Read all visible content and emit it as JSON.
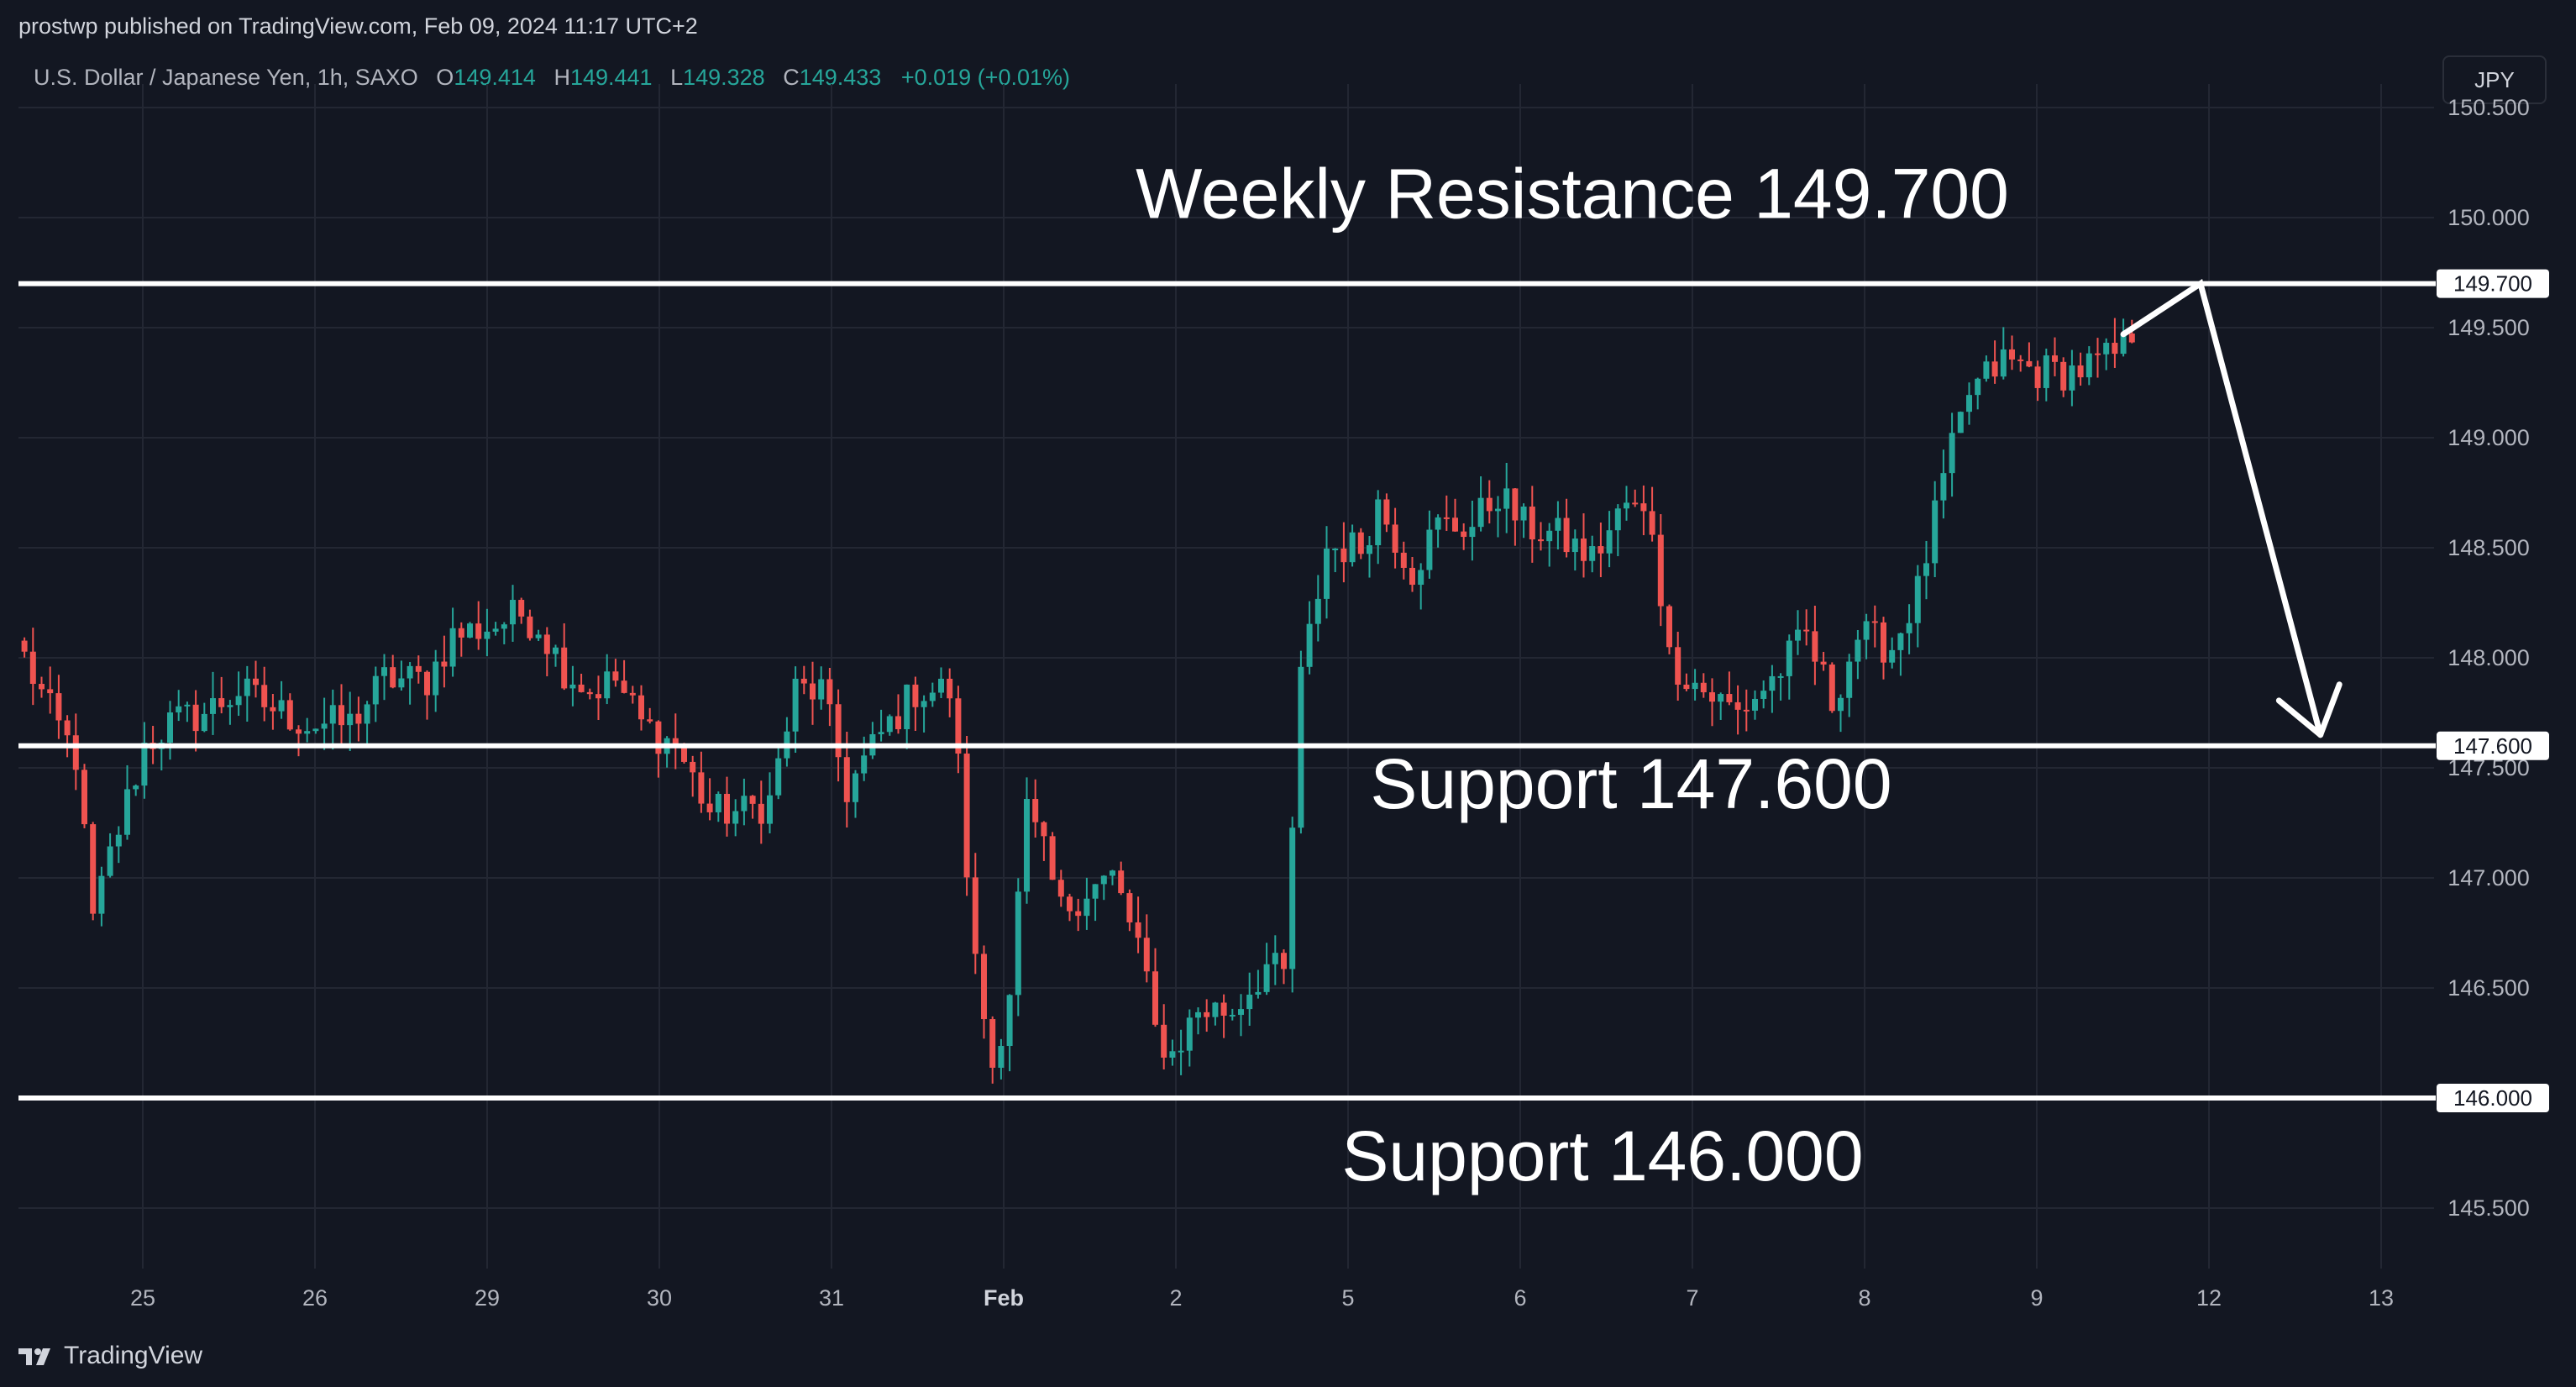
{
  "header": {
    "published": "prostwp published on TradingView.com, Feb 09, 2024 11:17 UTC+2",
    "symbol": "U.S. Dollar / Japanese Yen, 1h, SAXO",
    "open_label": "O",
    "open": "149.414",
    "high_label": "H",
    "high": "149.441",
    "low_label": "L",
    "low": "149.328",
    "close_label": "C",
    "close": "149.433",
    "change": "+0.019 (+0.01%)"
  },
  "currency_button": "JPY",
  "footer": {
    "brand": "TradingView"
  },
  "colors": {
    "background": "#131722",
    "up": "#26a69a",
    "down": "#ef5350",
    "grid": "#232733",
    "level_line": "#ffffff"
  },
  "chart_data": {
    "type": "candlestick",
    "title": "",
    "xlabel": "",
    "ylabel": "",
    "ylim": [
      145.2,
      150.6
    ],
    "grid": true,
    "y_ticks": [
      "150.500",
      "150.000",
      "149.500",
      "149.000",
      "148.500",
      "148.000",
      "147.500",
      "147.000",
      "146.500",
      "146.000",
      "145.500"
    ],
    "x_ticks": [
      "25",
      "26",
      "29",
      "30",
      "31",
      "Feb",
      "2",
      "5",
      "6",
      "7",
      "8",
      "9",
      "12",
      "13"
    ],
    "levels": [
      {
        "price": 149.7,
        "tag": "149.700",
        "annotation": "Weekly Resistance 149.700"
      },
      {
        "price": 147.6,
        "tag": "147.600",
        "annotation": "Support 147.600"
      },
      {
        "price": 146.0,
        "tag": "146.000",
        "annotation": "Support 146.000"
      }
    ],
    "projection_arrow": [
      {
        "bar": 245,
        "price": 149.47
      },
      {
        "bar": 254,
        "price": 149.7
      },
      {
        "bar": 268,
        "price": 147.65
      }
    ],
    "price_path": [
      [
        0,
        148.0
      ],
      [
        3,
        147.75
      ],
      [
        6,
        147.55
      ],
      [
        8,
        146.8
      ],
      [
        10,
        147.1
      ],
      [
        14,
        147.6
      ],
      [
        17,
        147.7
      ],
      [
        21,
        147.75
      ],
      [
        25,
        147.85
      ],
      [
        30,
        147.75
      ],
      [
        33,
        147.7
      ],
      [
        38,
        147.7
      ],
      [
        42,
        147.9
      ],
      [
        47,
        147.9
      ],
      [
        50,
        148.1
      ],
      [
        55,
        148.15
      ],
      [
        58,
        148.2
      ],
      [
        60,
        148.15
      ],
      [
        63,
        147.95
      ],
      [
        66,
        147.85
      ],
      [
        69,
        147.9
      ],
      [
        72,
        147.7
      ],
      [
        76,
        147.6
      ],
      [
        80,
        147.3
      ],
      [
        84,
        147.3
      ],
      [
        87,
        147.35
      ],
      [
        90,
        147.85
      ],
      [
        93,
        147.85
      ],
      [
        96,
        147.4
      ],
      [
        100,
        147.65
      ],
      [
        104,
        147.85
      ],
      [
        108,
        147.85
      ],
      [
        109,
        147.5
      ],
      [
        111,
        146.6
      ],
      [
        113,
        146.15
      ],
      [
        115,
        146.5
      ],
      [
        117,
        147.3
      ],
      [
        119,
        147.1
      ],
      [
        121,
        146.85
      ],
      [
        124,
        146.95
      ],
      [
        127,
        147.0
      ],
      [
        130,
        146.7
      ],
      [
        132,
        146.3
      ],
      [
        134,
        146.2
      ],
      [
        137,
        146.4
      ],
      [
        141,
        146.4
      ],
      [
        145,
        146.6
      ],
      [
        147,
        146.55
      ],
      [
        149,
        147.9
      ],
      [
        152,
        148.5
      ],
      [
        156,
        148.5
      ],
      [
        158,
        148.7
      ],
      [
        162,
        148.4
      ],
      [
        165,
        148.6
      ],
      [
        169,
        148.6
      ],
      [
        172,
        148.75
      ],
      [
        175,
        148.6
      ],
      [
        179,
        148.55
      ],
      [
        183,
        148.45
      ],
      [
        187,
        148.7
      ],
      [
        190,
        148.6
      ],
      [
        192,
        148.0
      ],
      [
        196,
        147.85
      ],
      [
        200,
        147.75
      ],
      [
        204,
        147.9
      ],
      [
        208,
        148.1
      ],
      [
        211,
        147.8
      ],
      [
        214,
        148.1
      ],
      [
        218,
        148.05
      ],
      [
        221,
        148.3
      ],
      [
        224,
        148.8
      ],
      [
        227,
        149.2
      ],
      [
        231,
        149.35
      ],
      [
        235,
        149.3
      ],
      [
        239,
        149.3
      ],
      [
        243,
        149.35
      ],
      [
        246,
        149.43
      ]
    ]
  }
}
